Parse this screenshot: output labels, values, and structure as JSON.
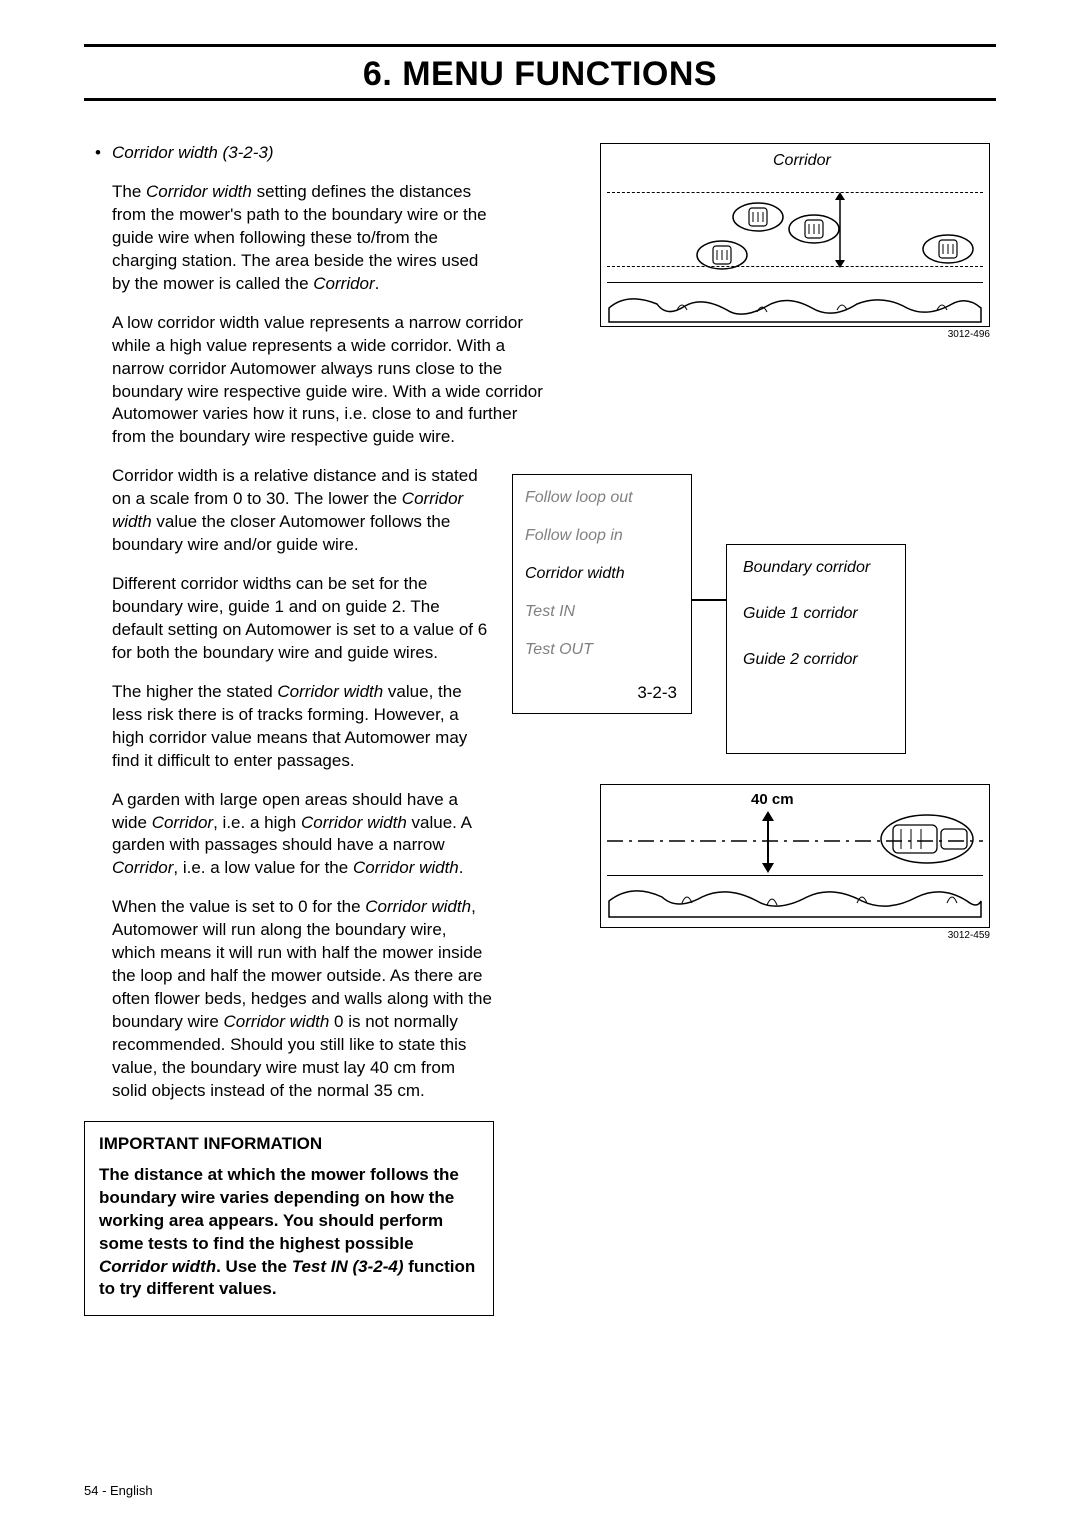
{
  "header": {
    "title": "6. MENU FUNCTIONS"
  },
  "section": {
    "bullet_label": "Corridor width (3-2-3)",
    "paragraphs": {
      "p1_html": "The <em>Corridor width</em> setting defines the distances from the mower's path to the boundary wire or the guide wire when following these to/from the charging station. The area beside the wires used by the mower is called the <em>Corridor</em>.",
      "p2_html": "A low corridor width value represents a narrow corridor while a high value represents a wide corridor. With a narrow corridor Automower always runs close to the boundary wire respective guide wire. With a wide corridor Automower varies how it runs, i.e. close to and further from the boundary wire respective guide wire.",
      "p3_html": "Corridor width is a relative distance and is stated on a scale from 0 to 30. The lower the <em>Corridor width</em> value the closer Automower follows the boundary wire and/or guide wire.",
      "p4_html": "Different corridor widths can be set for the boundary wire, guide 1 and on guide 2. The default setting on Automower is set to a value of 6 for both the boundary wire and guide wires.",
      "p5_html": "The higher the stated <em>Corridor width</em> value, the less risk there is of tracks forming. However, a high corridor value means that Automower may find it difficult to enter passages.",
      "p6_html": "A garden with large open areas should have a wide <em>Corridor</em>, i.e. a high <em>Corridor width</em> value. A garden with passages should have a narrow <em>Corridor</em>, i.e. a low value for the <em>Corridor width</em>.",
      "p7_html": "When the value is set to 0 for the <em>Corridor width</em>, Automower will run along the boundary wire, which means it will run with half the mower inside the loop and half the mower outside. As there are often flower beds, hedges and walls along with the boundary wire <em>Corridor width</em> 0 is not normally recommended. Should you still like to state this value, the boundary wire must lay 40 cm from solid objects instead of the normal 35 cm."
    }
  },
  "info_box": {
    "title": "IMPORTANT INFORMATION",
    "body_html": "The distance at which the mower follows the boundary wire varies depending on how the working area appears. You should perform some tests to find the highest possible <em>Corridor width</em>. Use the <em>Test IN (3-2-4)</em> function to try different values."
  },
  "figure1": {
    "label": "Corridor",
    "caption": "3012-496"
  },
  "menu": {
    "left_items": [
      {
        "label": "Follow loop out",
        "active": false
      },
      {
        "label": "Follow loop in",
        "active": false
      },
      {
        "label": "Corridor width",
        "active": true
      },
      {
        "label": "Test IN",
        "active": false
      },
      {
        "label": "Test OUT",
        "active": false
      }
    ],
    "code": "3-2-3",
    "right_items": [
      "Boundary corridor",
      "Guide 1 corridor",
      "Guide 2 corridor"
    ]
  },
  "figure3": {
    "label": "40 cm",
    "caption": "3012-459"
  },
  "footer": {
    "text": "54 - English"
  },
  "colors": {
    "text": "#000000",
    "muted": "#808080",
    "border": "#000000",
    "bg": "#ffffff"
  }
}
